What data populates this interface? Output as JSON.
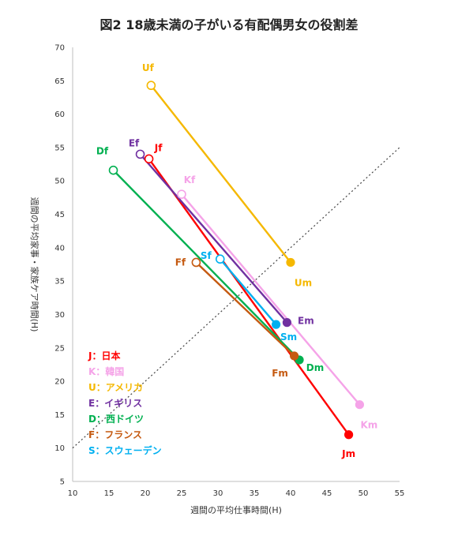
{
  "chart_data": {
    "type": "scatter",
    "title": "図2 18歳未満の子がいる有配偶男女の役割差",
    "xlabel": "週間の平均仕事時間(H)",
    "ylabel": "週間の平均家事・家族ケア時間(H)",
    "xlim": [
      10,
      55
    ],
    "ylim": [
      5,
      70
    ],
    "xticks": [
      10,
      15,
      20,
      25,
      30,
      35,
      40,
      45,
      50,
      55
    ],
    "yticks": [
      5,
      10,
      15,
      20,
      25,
      30,
      35,
      40,
      45,
      50,
      55,
      60,
      65,
      70
    ],
    "grid": false,
    "legend_position": "left",
    "reference_line": {
      "style": "dotted",
      "x": [
        10,
        55
      ],
      "y": [
        10,
        55
      ]
    },
    "series": [
      {
        "name": "J：日本",
        "color": "#ff0000",
        "female": {
          "label": "Jf",
          "x": 20.5,
          "y": 53.3
        },
        "male": {
          "label": "Jm",
          "x": 48,
          "y": 12
        }
      },
      {
        "name": "K：韓国",
        "color": "#f5a3e8",
        "female": {
          "label": "Kf",
          "x": 25,
          "y": 48
        },
        "male": {
          "label": "Km",
          "x": 49.5,
          "y": 16.5
        }
      },
      {
        "name": "U：アメリカ",
        "color": "#f5b800",
        "female": {
          "label": "Uf",
          "x": 20.8,
          "y": 64.3
        },
        "male": {
          "label": "Um",
          "x": 40,
          "y": 37.8
        }
      },
      {
        "name": "E：イギリス",
        "color": "#7030a0",
        "female": {
          "label": "Ef",
          "x": 19.3,
          "y": 54
        },
        "male": {
          "label": "Em",
          "x": 39.5,
          "y": 28.8
        }
      },
      {
        "name": "D：西ドイツ",
        "color": "#00b050",
        "female": {
          "label": "Df",
          "x": 15.6,
          "y": 51.6
        },
        "male": {
          "label": "Dm",
          "x": 41.2,
          "y": 23.2
        }
      },
      {
        "name": "F：フランス",
        "color": "#c55a11",
        "female": {
          "label": "Ff",
          "x": 27,
          "y": 37.8
        },
        "male": {
          "label": "Fm",
          "x": 40.5,
          "y": 23.8
        }
      },
      {
        "name": "S：スウェーデン",
        "color": "#00b0f0",
        "female": {
          "label": "Sf",
          "x": 30.3,
          "y": 38.3
        },
        "male": {
          "label": "Sm",
          "x": 38,
          "y": 28.5
        }
      }
    ]
  }
}
